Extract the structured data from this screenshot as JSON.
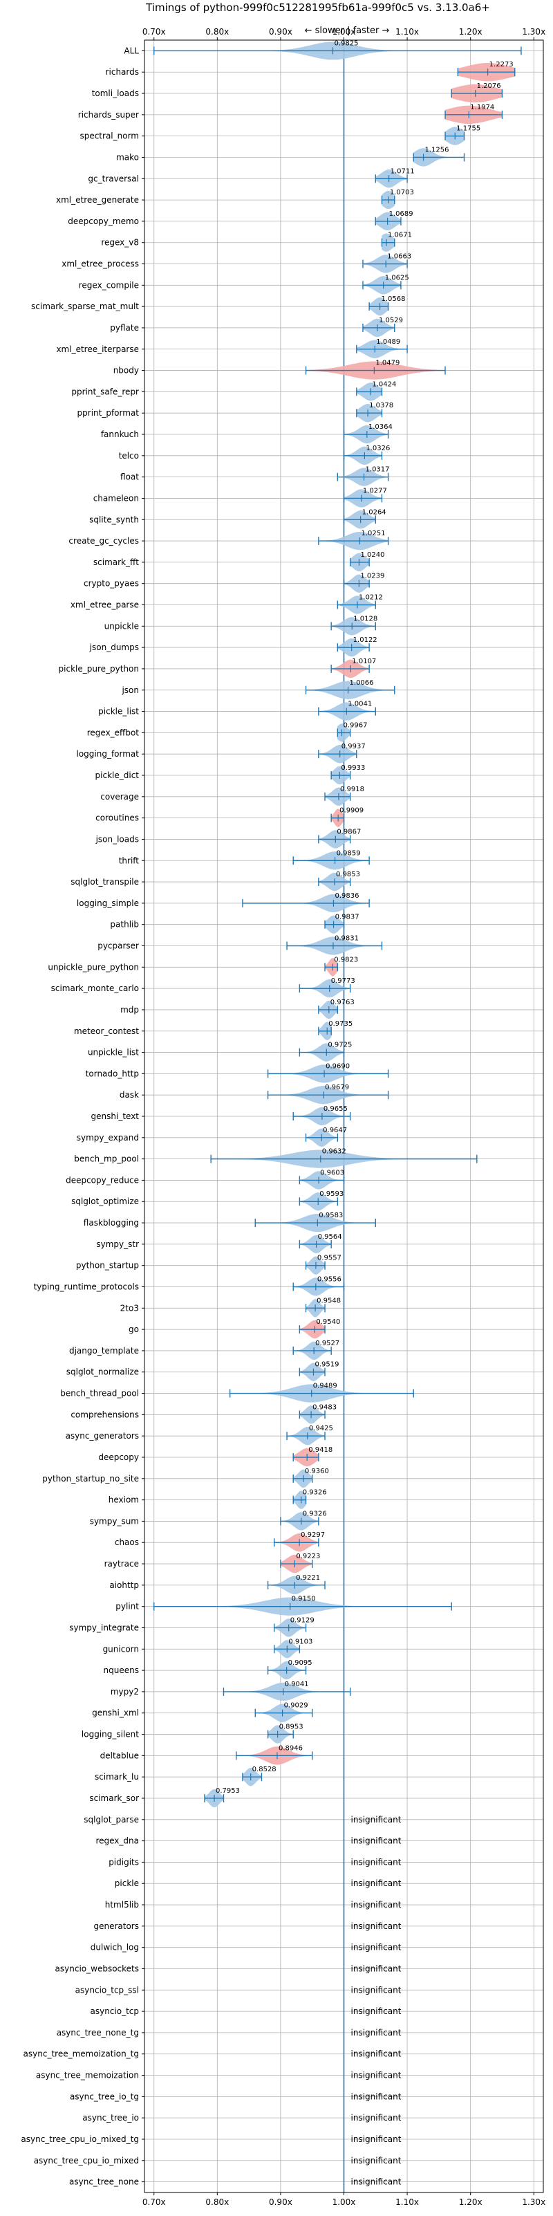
{
  "chart_data": {
    "type": "violin",
    "title": "Timings of python-999f0c512281995fb61a-999f0c5 vs. 3.13.0a6+",
    "direction_label": "← slower | faster →",
    "insignificant_label": "insignificant",
    "xlim": [
      0.685,
      1.315
    ],
    "xticks": [
      "0.70x",
      "0.80x",
      "0.90x",
      "1.00x",
      "1.10x",
      "1.20x",
      "1.30x"
    ],
    "xtick_values": [
      0.7,
      0.8,
      0.9,
      1.0,
      1.1,
      1.2,
      1.3
    ],
    "reference_line": 1.0,
    "colors": {
      "faster": "#a6c8e6",
      "slower": "#f4a8a8",
      "whisker": "#1f77b4",
      "reference": "#1f77b4",
      "grid": "#b0b0b0"
    },
    "benchmarks": [
      {
        "name": "ALL",
        "mean": 0.9825,
        "label": "0.9825",
        "low": 0.7,
        "high": 1.28,
        "spread": 0.035,
        "color": "faster"
      },
      {
        "name": "richards",
        "mean": 1.2273,
        "label": "1.2273",
        "low": 1.18,
        "high": 1.27,
        "spread": 0.035,
        "color": "slower"
      },
      {
        "name": "tomli_loads",
        "mean": 1.2076,
        "label": "1.2076",
        "low": 1.17,
        "high": 1.25,
        "spread": 0.033,
        "color": "slower"
      },
      {
        "name": "richards_super",
        "mean": 1.1974,
        "label": "1.1974",
        "low": 1.16,
        "high": 1.25,
        "spread": 0.033,
        "color": "slower"
      },
      {
        "name": "spectral_norm",
        "mean": 1.1755,
        "label": "1.1755",
        "low": 1.16,
        "high": 1.19,
        "spread": 0.013,
        "color": "faster"
      },
      {
        "name": "mako",
        "mean": 1.1256,
        "label": "1.1256",
        "low": 1.11,
        "high": 1.19,
        "spread": 0.014,
        "color": "faster"
      },
      {
        "name": "gc_traversal",
        "mean": 1.0711,
        "label": "1.0711",
        "low": 1.05,
        "high": 1.1,
        "spread": 0.012,
        "color": "faster"
      },
      {
        "name": "xml_etree_generate",
        "mean": 1.0703,
        "label": "1.0703",
        "low": 1.06,
        "high": 1.08,
        "spread": 0.01,
        "color": "faster"
      },
      {
        "name": "deepcopy_memo",
        "mean": 1.0689,
        "label": "1.0689",
        "low": 1.05,
        "high": 1.09,
        "spread": 0.012,
        "color": "faster"
      },
      {
        "name": "regex_v8",
        "mean": 1.0671,
        "label": "1.0671",
        "low": 1.06,
        "high": 1.08,
        "spread": 0.01,
        "color": "faster"
      },
      {
        "name": "xml_etree_process",
        "mean": 1.0663,
        "label": "1.0663",
        "low": 1.03,
        "high": 1.1,
        "spread": 0.014,
        "color": "faster"
      },
      {
        "name": "regex_compile",
        "mean": 1.0625,
        "label": "1.0625",
        "low": 1.03,
        "high": 1.09,
        "spread": 0.013,
        "color": "faster"
      },
      {
        "name": "scimark_sparse_mat_mult",
        "mean": 1.0568,
        "label": "1.0568",
        "low": 1.04,
        "high": 1.07,
        "spread": 0.01,
        "color": "faster"
      },
      {
        "name": "pyflate",
        "mean": 1.0529,
        "label": "1.0529",
        "low": 1.03,
        "high": 1.08,
        "spread": 0.012,
        "color": "faster"
      },
      {
        "name": "xml_etree_iterparse",
        "mean": 1.0489,
        "label": "1.0489",
        "low": 1.02,
        "high": 1.1,
        "spread": 0.015,
        "color": "faster"
      },
      {
        "name": "nbody",
        "mean": 1.0479,
        "label": "1.0479",
        "low": 0.94,
        "high": 1.16,
        "spread": 0.04,
        "color": "slower"
      },
      {
        "name": "pprint_safe_repr",
        "mean": 1.0424,
        "label": "1.0424",
        "low": 1.02,
        "high": 1.06,
        "spread": 0.012,
        "color": "faster"
      },
      {
        "name": "pprint_pformat",
        "mean": 1.0378,
        "label": "1.0378",
        "low": 1.02,
        "high": 1.06,
        "spread": 0.012,
        "color": "faster"
      },
      {
        "name": "fannkuch",
        "mean": 1.0364,
        "label": "1.0364",
        "low": 1.0,
        "high": 1.07,
        "spread": 0.013,
        "color": "faster"
      },
      {
        "name": "telco",
        "mean": 1.0326,
        "label": "1.0326",
        "low": 1.0,
        "high": 1.06,
        "spread": 0.012,
        "color": "faster"
      },
      {
        "name": "float",
        "mean": 1.0317,
        "label": "1.0317",
        "low": 0.99,
        "high": 1.07,
        "spread": 0.014,
        "color": "faster"
      },
      {
        "name": "chameleon",
        "mean": 1.0277,
        "label": "1.0277",
        "low": 1.0,
        "high": 1.06,
        "spread": 0.013,
        "color": "faster"
      },
      {
        "name": "sqlite_synth",
        "mean": 1.0264,
        "label": "1.0264",
        "low": 1.0,
        "high": 1.05,
        "spread": 0.012,
        "color": "faster"
      },
      {
        "name": "create_gc_cycles",
        "mean": 1.0251,
        "label": "1.0251",
        "low": 0.96,
        "high": 1.07,
        "spread": 0.02,
        "color": "faster"
      },
      {
        "name": "scimark_fft",
        "mean": 1.024,
        "label": "1.0240",
        "low": 1.01,
        "high": 1.04,
        "spread": 0.01,
        "color": "faster"
      },
      {
        "name": "crypto_pyaes",
        "mean": 1.0239,
        "label": "1.0239",
        "low": 1.0,
        "high": 1.04,
        "spread": 0.01,
        "color": "faster"
      },
      {
        "name": "xml_etree_parse",
        "mean": 1.0212,
        "label": "1.0212",
        "low": 0.99,
        "high": 1.05,
        "spread": 0.012,
        "color": "faster"
      },
      {
        "name": "unpickle",
        "mean": 1.0128,
        "label": "1.0128",
        "low": 0.98,
        "high": 1.05,
        "spread": 0.013,
        "color": "faster"
      },
      {
        "name": "json_dumps",
        "mean": 1.0122,
        "label": "1.0122",
        "low": 0.99,
        "high": 1.04,
        "spread": 0.011,
        "color": "faster"
      },
      {
        "name": "pickle_pure_python",
        "mean": 1.0107,
        "label": "1.0107",
        "low": 0.98,
        "high": 1.04,
        "spread": 0.012,
        "color": "slower"
      },
      {
        "name": "json",
        "mean": 1.0066,
        "label": "1.0066",
        "low": 0.94,
        "high": 1.08,
        "spread": 0.022,
        "color": "faster"
      },
      {
        "name": "pickle_list",
        "mean": 1.0041,
        "label": "1.0041",
        "low": 0.96,
        "high": 1.05,
        "spread": 0.015,
        "color": "faster"
      },
      {
        "name": "regex_effbot",
        "mean": 0.9967,
        "label": "0.9967",
        "low": 0.99,
        "high": 1.01,
        "spread": 0.008,
        "color": "faster"
      },
      {
        "name": "logging_format",
        "mean": 0.9937,
        "label": "0.9937",
        "low": 0.96,
        "high": 1.02,
        "spread": 0.012,
        "color": "faster"
      },
      {
        "name": "pickle_dict",
        "mean": 0.9933,
        "label": "0.9933",
        "low": 0.98,
        "high": 1.01,
        "spread": 0.009,
        "color": "faster"
      },
      {
        "name": "coverage",
        "mean": 0.9918,
        "label": "0.9918",
        "low": 0.97,
        "high": 1.01,
        "spread": 0.01,
        "color": "faster"
      },
      {
        "name": "coroutines",
        "mean": 0.9909,
        "label": "0.9909",
        "low": 0.98,
        "high": 1.0,
        "spread": 0.006,
        "color": "slower"
      },
      {
        "name": "json_loads",
        "mean": 0.9867,
        "label": "0.9867",
        "low": 0.96,
        "high": 1.01,
        "spread": 0.011,
        "color": "faster"
      },
      {
        "name": "thrift",
        "mean": 0.9859,
        "label": "0.9859",
        "low": 0.92,
        "high": 1.04,
        "spread": 0.018,
        "color": "faster"
      },
      {
        "name": "sqlglot_transpile",
        "mean": 0.9853,
        "label": "0.9853",
        "low": 0.96,
        "high": 1.01,
        "spread": 0.011,
        "color": "faster"
      },
      {
        "name": "logging_simple",
        "mean": 0.9836,
        "label": "0.9836",
        "low": 0.84,
        "high": 1.04,
        "spread": 0.018,
        "color": "faster"
      },
      {
        "name": "pathlib",
        "mean": 0.9837,
        "label": "0.9837",
        "low": 0.97,
        "high": 1.0,
        "spread": 0.009,
        "color": "faster"
      },
      {
        "name": "pycparser",
        "mean": 0.9831,
        "label": "0.9831",
        "low": 0.91,
        "high": 1.06,
        "spread": 0.02,
        "color": "faster"
      },
      {
        "name": "unpickle_pure_python",
        "mean": 0.9823,
        "label": "0.9823",
        "low": 0.97,
        "high": 0.99,
        "spread": 0.006,
        "color": "slower"
      },
      {
        "name": "scimark_monte_carlo",
        "mean": 0.9773,
        "label": "0.9773",
        "low": 0.93,
        "high": 1.01,
        "spread": 0.012,
        "color": "faster"
      },
      {
        "name": "mdp",
        "mean": 0.9763,
        "label": "0.9763",
        "low": 0.96,
        "high": 0.99,
        "spread": 0.008,
        "color": "faster"
      },
      {
        "name": "meteor_contest",
        "mean": 0.9735,
        "label": "0.9735",
        "low": 0.96,
        "high": 0.98,
        "spread": 0.007,
        "color": "faster"
      },
      {
        "name": "unpickle_list",
        "mean": 0.9725,
        "label": "0.9725",
        "low": 0.93,
        "high": 1.0,
        "spread": 0.012,
        "color": "faster"
      },
      {
        "name": "tornado_http",
        "mean": 0.969,
        "label": "0.9690",
        "low": 0.88,
        "high": 1.07,
        "spread": 0.02,
        "color": "faster"
      },
      {
        "name": "dask",
        "mean": 0.9679,
        "label": "0.9679",
        "low": 0.88,
        "high": 1.07,
        "spread": 0.022,
        "color": "faster"
      },
      {
        "name": "genshi_text",
        "mean": 0.9655,
        "label": "0.9655",
        "low": 0.92,
        "high": 1.01,
        "spread": 0.013,
        "color": "faster"
      },
      {
        "name": "sympy_expand",
        "mean": 0.9647,
        "label": "0.9647",
        "low": 0.94,
        "high": 0.99,
        "spread": 0.01,
        "color": "faster"
      },
      {
        "name": "bench_mp_pool",
        "mean": 0.9632,
        "label": "0.9632",
        "low": 0.79,
        "high": 1.21,
        "spread": 0.045,
        "color": "faster"
      },
      {
        "name": "deepcopy_reduce",
        "mean": 0.9603,
        "label": "0.9603",
        "low": 0.93,
        "high": 1.0,
        "spread": 0.012,
        "color": "faster"
      },
      {
        "name": "sqlglot_optimize",
        "mean": 0.9593,
        "label": "0.9593",
        "low": 0.93,
        "high": 0.99,
        "spread": 0.011,
        "color": "faster"
      },
      {
        "name": "flaskblogging",
        "mean": 0.9583,
        "label": "0.9583",
        "low": 0.86,
        "high": 1.05,
        "spread": 0.022,
        "color": "faster"
      },
      {
        "name": "sympy_str",
        "mean": 0.9564,
        "label": "0.9564",
        "low": 0.93,
        "high": 0.98,
        "spread": 0.01,
        "color": "faster"
      },
      {
        "name": "python_startup",
        "mean": 0.9557,
        "label": "0.9557",
        "low": 0.94,
        "high": 0.97,
        "spread": 0.008,
        "color": "faster"
      },
      {
        "name": "typing_runtime_protocols",
        "mean": 0.9556,
        "label": "0.9556",
        "low": 0.92,
        "high": 1.0,
        "spread": 0.012,
        "color": "faster"
      },
      {
        "name": "2to3",
        "mean": 0.9548,
        "label": "0.9548",
        "low": 0.94,
        "high": 0.97,
        "spread": 0.007,
        "color": "faster"
      },
      {
        "name": "go",
        "mean": 0.954,
        "label": "0.9540",
        "low": 0.93,
        "high": 0.97,
        "spread": 0.01,
        "color": "slower"
      },
      {
        "name": "django_template",
        "mean": 0.9527,
        "label": "0.9527",
        "low": 0.92,
        "high": 0.98,
        "spread": 0.01,
        "color": "faster"
      },
      {
        "name": "sqlglot_normalize",
        "mean": 0.9519,
        "label": "0.9519",
        "low": 0.93,
        "high": 0.97,
        "spread": 0.009,
        "color": "faster"
      },
      {
        "name": "bench_thread_pool",
        "mean": 0.9489,
        "label": "0.9489",
        "low": 0.82,
        "high": 1.11,
        "spread": 0.03,
        "color": "faster"
      },
      {
        "name": "comprehensions",
        "mean": 0.9483,
        "label": "0.9483",
        "low": 0.93,
        "high": 0.97,
        "spread": 0.009,
        "color": "faster"
      },
      {
        "name": "async_generators",
        "mean": 0.9425,
        "label": "0.9425",
        "low": 0.91,
        "high": 0.97,
        "spread": 0.011,
        "color": "faster"
      },
      {
        "name": "deepcopy",
        "mean": 0.9418,
        "label": "0.9418",
        "low": 0.92,
        "high": 0.96,
        "spread": 0.012,
        "color": "slower"
      },
      {
        "name": "python_startup_no_site",
        "mean": 0.936,
        "label": "0.9360",
        "low": 0.92,
        "high": 0.95,
        "spread": 0.008,
        "color": "faster"
      },
      {
        "name": "hexiom",
        "mean": 0.9326,
        "label": "0.9326",
        "low": 0.92,
        "high": 0.94,
        "spread": 0.007,
        "color": "faster"
      },
      {
        "name": "sympy_sum",
        "mean": 0.9326,
        "label": "0.9326",
        "low": 0.9,
        "high": 0.96,
        "spread": 0.011,
        "color": "faster"
      },
      {
        "name": "chaos",
        "mean": 0.9297,
        "label": "0.9297",
        "low": 0.89,
        "high": 0.96,
        "spread": 0.013,
        "color": "slower"
      },
      {
        "name": "raytrace",
        "mean": 0.9223,
        "label": "0.9223",
        "low": 0.9,
        "high": 0.95,
        "spread": 0.012,
        "color": "slower"
      },
      {
        "name": "aiohttp",
        "mean": 0.9221,
        "label": "0.9221",
        "low": 0.88,
        "high": 0.97,
        "spread": 0.014,
        "color": "faster"
      },
      {
        "name": "pylint",
        "mean": 0.915,
        "label": "0.9150",
        "low": 0.7,
        "high": 1.17,
        "spread": 0.04,
        "color": "faster"
      },
      {
        "name": "sympy_integrate",
        "mean": 0.9129,
        "label": "0.9129",
        "low": 0.89,
        "high": 0.94,
        "spread": 0.01,
        "color": "faster"
      },
      {
        "name": "gunicorn",
        "mean": 0.9103,
        "label": "0.9103",
        "low": 0.89,
        "high": 0.93,
        "spread": 0.009,
        "color": "faster"
      },
      {
        "name": "nqueens",
        "mean": 0.9095,
        "label": "0.9095",
        "low": 0.88,
        "high": 0.94,
        "spread": 0.01,
        "color": "faster"
      },
      {
        "name": "mypy2",
        "mean": 0.9041,
        "label": "0.9041",
        "low": 0.81,
        "high": 1.01,
        "spread": 0.02,
        "color": "faster"
      },
      {
        "name": "genshi_xml",
        "mean": 0.9029,
        "label": "0.9029",
        "low": 0.86,
        "high": 0.95,
        "spread": 0.013,
        "color": "faster"
      },
      {
        "name": "logging_silent",
        "mean": 0.8953,
        "label": "0.8953",
        "low": 0.88,
        "high": 0.92,
        "spread": 0.009,
        "color": "faster"
      },
      {
        "name": "deltablue",
        "mean": 0.8946,
        "label": "0.8946",
        "low": 0.83,
        "high": 0.95,
        "spread": 0.018,
        "color": "slower"
      },
      {
        "name": "scimark_lu",
        "mean": 0.8528,
        "label": "0.8528",
        "low": 0.84,
        "high": 0.87,
        "spread": 0.008,
        "color": "faster"
      },
      {
        "name": "scimark_sor",
        "mean": 0.7953,
        "label": "0.7953",
        "low": 0.78,
        "high": 0.81,
        "spread": 0.008,
        "color": "faster"
      },
      {
        "name": "sqlglot_parse",
        "insignificant": true
      },
      {
        "name": "regex_dna",
        "insignificant": true
      },
      {
        "name": "pidigits",
        "insignificant": true
      },
      {
        "name": "pickle",
        "insignificant": true
      },
      {
        "name": "html5lib",
        "insignificant": true
      },
      {
        "name": "generators",
        "insignificant": true
      },
      {
        "name": "dulwich_log",
        "insignificant": true
      },
      {
        "name": "asyncio_websockets",
        "insignificant": true
      },
      {
        "name": "asyncio_tcp_ssl",
        "insignificant": true
      },
      {
        "name": "asyncio_tcp",
        "insignificant": true
      },
      {
        "name": "async_tree_none_tg",
        "insignificant": true
      },
      {
        "name": "async_tree_memoization_tg",
        "insignificant": true
      },
      {
        "name": "async_tree_memoization",
        "insignificant": true
      },
      {
        "name": "async_tree_io_tg",
        "insignificant": true
      },
      {
        "name": "async_tree_io",
        "insignificant": true
      },
      {
        "name": "async_tree_cpu_io_mixed_tg",
        "insignificant": true
      },
      {
        "name": "async_tree_cpu_io_mixed",
        "insignificant": true
      },
      {
        "name": "async_tree_none",
        "insignificant": true
      }
    ]
  }
}
